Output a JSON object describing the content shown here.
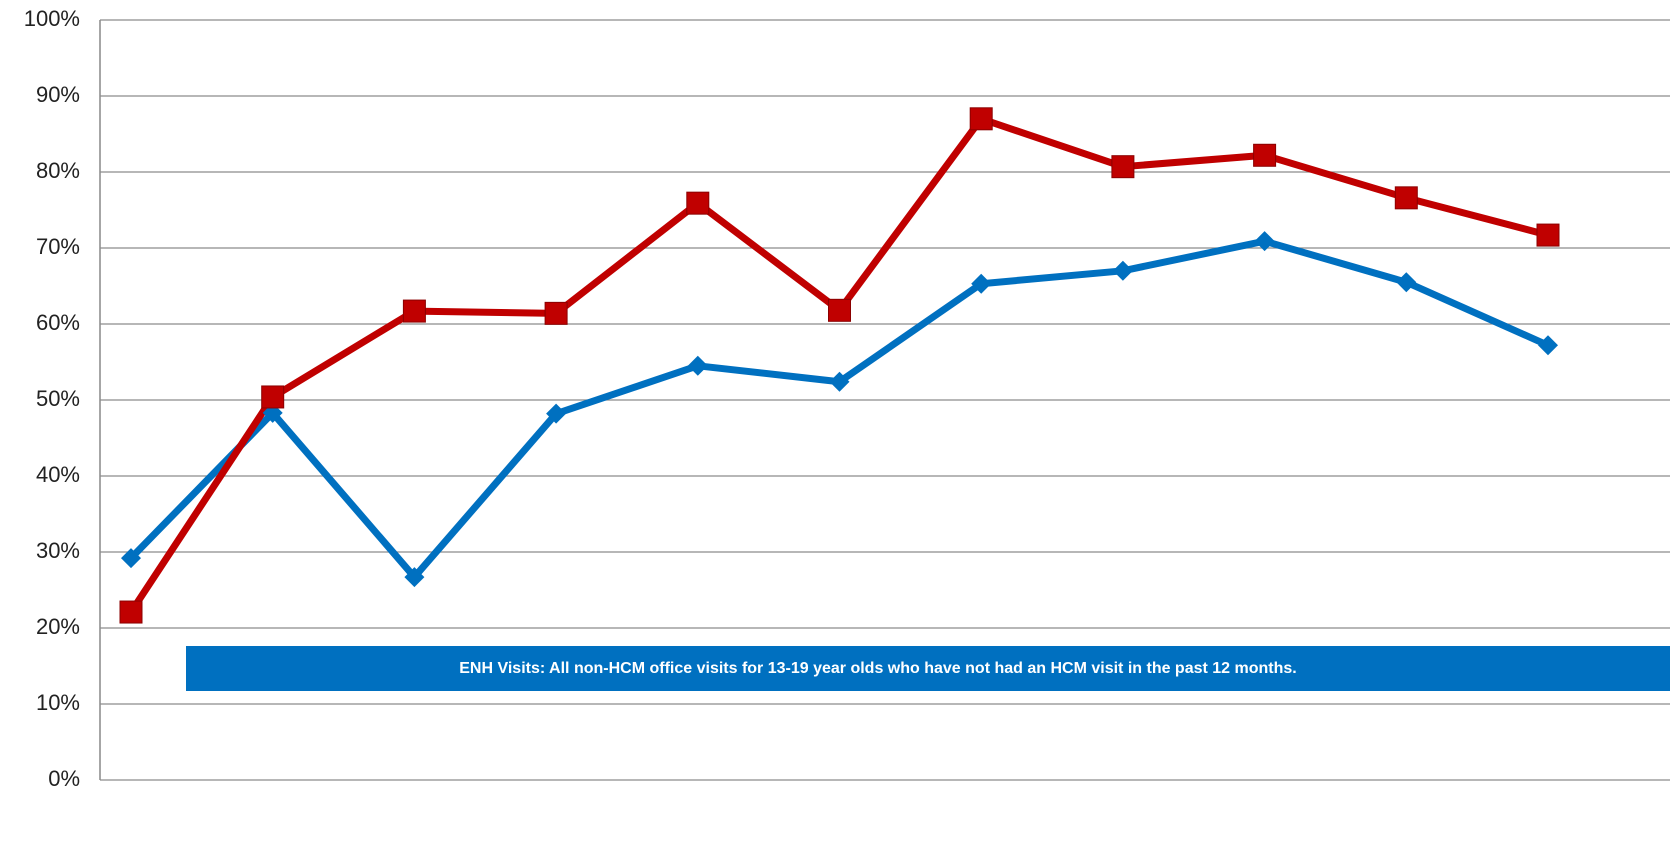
{
  "chart_data": {
    "type": "line",
    "categories": [
      null,
      null,
      null,
      null,
      null,
      null,
      null,
      null,
      null,
      null,
      null
    ],
    "series": [
      {
        "color": "#0070c0",
        "marker": "diamond",
        "values": [
          29.2,
          48.3,
          26.7,
          48.2,
          54.5,
          52.4,
          65.3,
          67.0,
          70.9,
          65.5,
          57.2
        ]
      },
      {
        "color": "#c00000",
        "marker": "square",
        "values": [
          22.1,
          50.4,
          61.7,
          61.4,
          75.9,
          61.8,
          87.0,
          80.7,
          82.2,
          76.6,
          71.7
        ]
      }
    ],
    "ylim": [
      0,
      100
    ],
    "yticks": [
      {
        "value": 0,
        "label": "0%"
      },
      {
        "value": 10,
        "label": "10%"
      },
      {
        "value": 20,
        "label": "20%"
      },
      {
        "value": 30,
        "label": "30%"
      },
      {
        "value": 40,
        "label": "40%"
      },
      {
        "value": 50,
        "label": "50%"
      },
      {
        "value": 60,
        "label": "60%"
      },
      {
        "value": 70,
        "label": "70%"
      },
      {
        "value": 80,
        "label": "80%"
      },
      {
        "value": 90,
        "label": "90%"
      },
      {
        "value": 100,
        "label": "100%"
      }
    ],
    "grid": true,
    "annotation": "ENH Visits:  All non-HCM office visits for 13-19 year olds  who have not had an HCM visit in the past 12 months."
  }
}
